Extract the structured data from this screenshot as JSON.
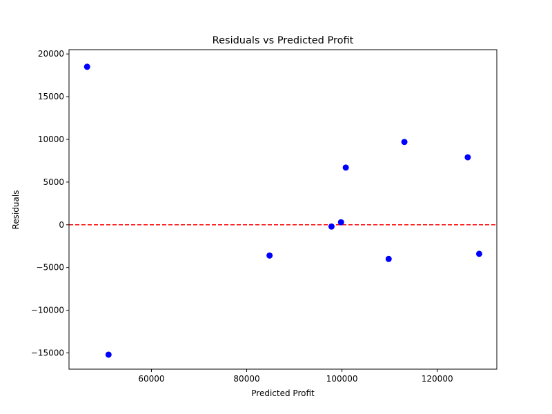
{
  "chart_data": {
    "type": "scatter",
    "title": "Residuals vs Predicted Profit",
    "xlabel": "Predicted Profit",
    "ylabel": "Residuals",
    "xlim": [
      42700,
      132500
    ],
    "ylim": [
      -16900,
      20500
    ],
    "xticks": [
      60000,
      80000,
      100000,
      120000
    ],
    "yticks": [
      -15000,
      -10000,
      -5000,
      0,
      5000,
      10000,
      15000,
      20000
    ],
    "grid": false,
    "point_color": "#0000ff",
    "reference_line": {
      "y": 0,
      "color": "#ff0000",
      "style": "dashed"
    },
    "points": [
      {
        "x": 46500,
        "y": 18500
      },
      {
        "x": 51000,
        "y": -15200
      },
      {
        "x": 84800,
        "y": -3600
      },
      {
        "x": 97800,
        "y": -200
      },
      {
        "x": 99800,
        "y": 300
      },
      {
        "x": 100800,
        "y": 6700
      },
      {
        "x": 109800,
        "y": -4000
      },
      {
        "x": 113100,
        "y": 9700
      },
      {
        "x": 126400,
        "y": 7900
      },
      {
        "x": 128800,
        "y": -3400
      }
    ]
  }
}
